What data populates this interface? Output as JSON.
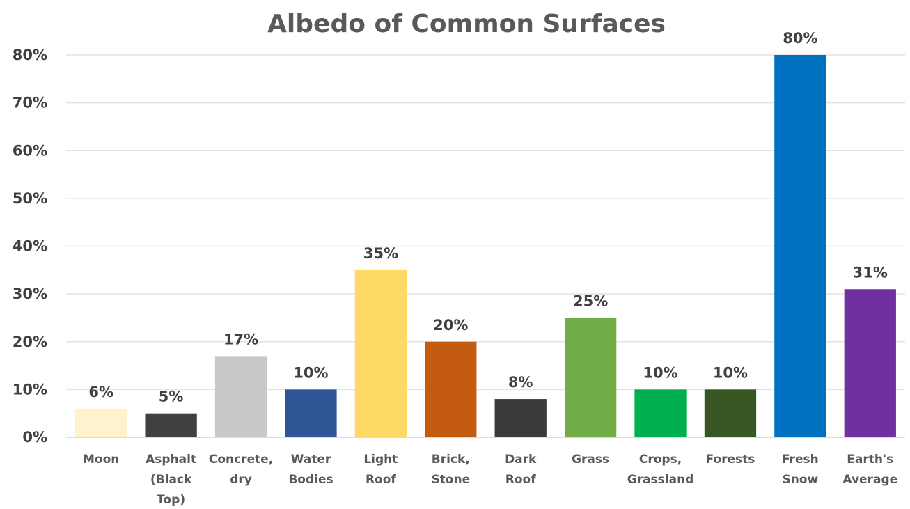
{
  "chart_data": {
    "type": "bar",
    "title": "Albedo of Common Surfaces",
    "xlabel": "",
    "ylabel": "",
    "ylim": [
      0,
      80
    ],
    "y_ticks": [
      "0%",
      "10%",
      "20%",
      "30%",
      "40%",
      "50%",
      "60%",
      "70%",
      "80%"
    ],
    "grid": true,
    "legend": "none",
    "categories": [
      [
        "Moon"
      ],
      [
        "Asphalt",
        "(Black",
        "Top)"
      ],
      [
        "Concrete,",
        "dry"
      ],
      [
        "Water",
        "Bodies"
      ],
      [
        "Light",
        "Roof"
      ],
      [
        "Brick,",
        "Stone"
      ],
      [
        "Dark",
        "Roof"
      ],
      [
        "Grass"
      ],
      [
        "Crops,",
        "Grassland"
      ],
      [
        "Forests"
      ],
      [
        "Fresh",
        "Snow"
      ],
      [
        "Earth's",
        "Average"
      ]
    ],
    "values": [
      6,
      5,
      17,
      10,
      35,
      20,
      8,
      25,
      10,
      10,
      80,
      31
    ],
    "data_labels": [
      "6%",
      "5%",
      "17%",
      "10%",
      "35%",
      "20%",
      "8%",
      "25%",
      "10%",
      "10%",
      "80%",
      "31%"
    ],
    "colors": [
      "#FFF2CC",
      "#404040",
      "#C9C9C9",
      "#2F5597",
      "#FFD966",
      "#C55A11",
      "#3A3A3A",
      "#70AD47",
      "#00B050",
      "#375623",
      "#0070C0",
      "#7030A0"
    ]
  }
}
